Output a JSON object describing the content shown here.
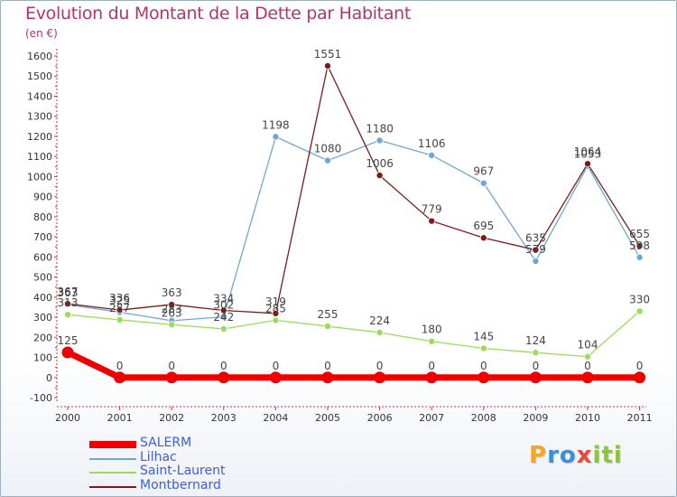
{
  "title": "Evolution du Montant de la Dette par Habitant",
  "subtitle": "(en €)",
  "logo": {
    "text": "Proxiti"
  },
  "chart_data": {
    "type": "line",
    "title": "Evolution du Montant de la Dette par Habitant",
    "subtitle": "(en €)",
    "xlabel": "",
    "ylabel": "",
    "x": [
      "2000",
      "2001",
      "2002",
      "2003",
      "2004",
      "2005",
      "2006",
      "2007",
      "2008",
      "2009",
      "2010",
      "2011"
    ],
    "ylim": [
      -100,
      1600
    ],
    "yticks": [
      -100,
      0,
      100,
      200,
      300,
      400,
      500,
      600,
      700,
      800,
      900,
      1000,
      1100,
      1200,
      1300,
      1400,
      1500,
      1600
    ],
    "grid": false,
    "legend_position": "bottom-left",
    "series": [
      {
        "name": "SALERM",
        "color": "#ee0000",
        "values": [
          125,
          0,
          0,
          0,
          0,
          0,
          0,
          0,
          0,
          0,
          0,
          0
        ]
      },
      {
        "name": "Lilhac",
        "color": "#6fa6d6",
        "values": [
          363,
          325,
          283,
          302,
          1198,
          1080,
          1180,
          1106,
          967,
          579,
          1053,
          598
        ]
      },
      {
        "name": "Saint-Laurent",
        "color": "#9adc5a",
        "values": [
          313,
          287,
          263,
          242,
          285,
          255,
          224,
          180,
          145,
          124,
          104,
          330
        ]
      },
      {
        "name": "Montbernard",
        "color": "#7a1c1c",
        "values": [
          367,
          336,
          363,
          334,
          319,
          1551,
          1006,
          779,
          695,
          635,
          1064,
          655
        ]
      }
    ]
  }
}
